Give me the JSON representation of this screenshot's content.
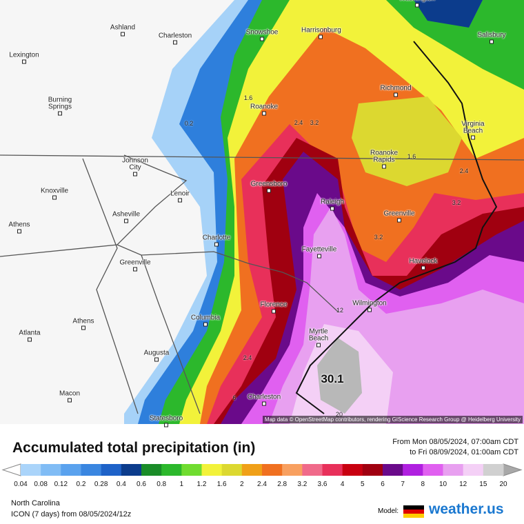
{
  "map": {
    "cities": [
      "Ashland",
      "Charleston",
      "Snowshoe",
      "Harrisonburg",
      "Washington",
      "Salisbury",
      "Lexington",
      "Burning Springs",
      "Roanoke",
      "Richmond",
      "Virginia Beach",
      "Johnson City",
      "Roanoke Rapids",
      "Knoxville",
      "Lenoir",
      "Greensboro",
      "Raleigh",
      "Asheville",
      "Greenville",
      "Athens",
      "Charlotte",
      "Fayetteville",
      "Havelock",
      "Greenville",
      "Florence",
      "Wilmington",
      "Columbia",
      "Athens",
      "Myrtle Beach",
      "Atlanta",
      "Augusta",
      "Macon",
      "Charleston",
      "Statesboro"
    ],
    "contour_labels": [
      "1.6",
      "0.2",
      "2.4",
      "3.2",
      "1.6",
      "2.4",
      "3.2",
      "3.2",
      "12",
      "2.4",
      "30.1",
      "6",
      "20"
    ],
    "attribution": "Map data © OpenStreetMap contributors, rendering GIScience Research Group @ Heidelberg University"
  },
  "legend": {
    "title": "Accumulated total precipitation (in)",
    "period": [
      "From Mon 08/05/2024, 07:00am CDT",
      "to Fri 08/09/2024, 01:00am CDT"
    ],
    "ticks": [
      0.04,
      0.08,
      0.12,
      0.2,
      0.28,
      0.4,
      0.6,
      0.8,
      1,
      1.2,
      1.6,
      2,
      2.4,
      2.8,
      3.2,
      3.6,
      4,
      5,
      6,
      7,
      8,
      10,
      12,
      15,
      20
    ],
    "colors": [
      "#aad4fa",
      "#80bcf5",
      "#5aa2ee",
      "#3a86e0",
      "#1e62c8",
      "#0c3c8c",
      "#1a8c28",
      "#2cb82c",
      "#70dc30",
      "#f2f23a",
      "#dcd830",
      "#f0a018",
      "#f07020",
      "#f8a060",
      "#f06a8a",
      "#e8305a",
      "#c80010",
      "#a00010",
      "#6a0a8a",
      "#b020e0",
      "#e060f0",
      "#e8a0f0",
      "#f4d0f6",
      "#d0d0d0"
    ]
  },
  "footer": {
    "region": "North Carolina",
    "model_run": "ICON (7 days) from 08/05/2024/12z",
    "model_label": "Model:",
    "brand": "weather.us"
  }
}
